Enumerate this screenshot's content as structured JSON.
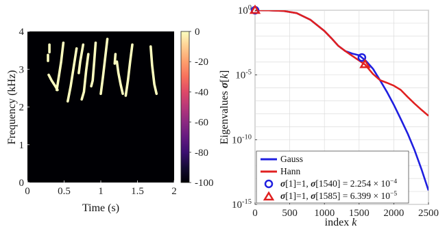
{
  "chart_data": [
    {
      "type": "heatmap",
      "xlabel": "Time (s)",
      "ylabel": "Frequency (kHz)",
      "xlim": [
        0,
        2
      ],
      "ylim": [
        0,
        4
      ],
      "x_ticks": [
        "0",
        "0.5",
        "1",
        "1.5",
        "2"
      ],
      "y_ticks": [
        "0",
        "1",
        "2",
        "3",
        "4"
      ],
      "colorbar": {
        "range": [
          -100,
          0
        ],
        "ticks": [
          "0",
          "-20",
          "-40",
          "-60",
          "-80",
          "-100"
        ],
        "colors": [
          "#000004",
          "#140b34",
          "#3b0f70",
          "#641a80",
          "#8c2981",
          "#b73779",
          "#de4968",
          "#f7705c",
          "#fe9f6d",
          "#fecf92",
          "#fcfdbf"
        ]
      },
      "background_color": "#000004",
      "strokes": [
        {
          "points": [
            [
              0.28,
              3.38
            ],
            [
              0.28,
              3.22
            ]
          ]
        },
        {
          "points": [
            [
              0.3,
              3.65
            ],
            [
              0.3,
              3.45
            ]
          ]
        },
        {
          "points": [
            [
              0.29,
              2.85
            ],
            [
              0.33,
              2.7
            ],
            [
              0.38,
              2.55
            ],
            [
              0.41,
              2.45
            ]
          ]
        },
        {
          "points": [
            [
              0.49,
              3.7
            ],
            [
              0.46,
              3.2
            ],
            [
              0.42,
              2.7
            ],
            [
              0.4,
              2.45
            ]
          ]
        },
        {
          "points": [
            [
              0.67,
              3.55
            ],
            [
              0.63,
              3.05
            ],
            [
              0.59,
              2.55
            ],
            [
              0.55,
              2.15
            ]
          ]
        },
        {
          "points": [
            [
              0.76,
              3.65
            ],
            [
              0.72,
              3.2
            ],
            [
              0.7,
              2.9
            ]
          ]
        },
        {
          "points": [
            [
              0.83,
              3.4
            ],
            [
              0.8,
              2.95
            ],
            [
              0.77,
              2.4
            ],
            [
              0.74,
              2.2
            ]
          ]
        },
        {
          "points": [
            [
              0.93,
              3.7
            ],
            [
              0.91,
              3.2
            ],
            [
              0.89,
              2.7
            ],
            [
              0.87,
              2.55
            ]
          ]
        },
        {
          "points": [
            [
              1.09,
              3.8
            ],
            [
              1.06,
              3.3
            ],
            [
              1.03,
              2.8
            ],
            [
              1.0,
              2.35
            ]
          ]
        },
        {
          "points": [
            [
              1.2,
              3.4
            ],
            [
              1.19,
              3.15
            ]
          ]
        },
        {
          "points": [
            [
              1.22,
              3.2
            ],
            [
              1.24,
              2.9
            ],
            [
              1.27,
              2.6
            ],
            [
              1.3,
              2.35
            ]
          ]
        },
        {
          "points": [
            [
              1.43,
              3.65
            ],
            [
              1.4,
              3.2
            ],
            [
              1.37,
              2.7
            ],
            [
              1.34,
              2.3
            ]
          ]
        },
        {
          "points": [
            [
              1.68,
              3.6
            ],
            [
              1.7,
              3.1
            ],
            [
              1.73,
              2.6
            ],
            [
              1.76,
              2.35
            ]
          ]
        }
      ]
    },
    {
      "type": "line",
      "xlabel": "index k",
      "ylabel": "Eigenvalues σ[k]",
      "xlim": [
        0,
        2500
      ],
      "yscale": "log",
      "ylim": [
        1e-15,
        1
      ],
      "x_ticks": [
        "0",
        "500",
        "1000",
        "1500",
        "2000",
        "2500"
      ],
      "y_ticks": [
        {
          "base": "10",
          "exp": "0",
          "value": 1
        },
        {
          "base": "10",
          "exp": "-5",
          "value": 1e-05
        },
        {
          "base": "10",
          "exp": "-10",
          "value": 1e-10
        },
        {
          "base": "10",
          "exp": "-15",
          "value": 1e-15
        }
      ],
      "grid": true,
      "legend_position": "bottom-left",
      "series": [
        {
          "name": "Gauss",
          "color": "#1f1fe0",
          "x": [
            0,
            200,
            400,
            600,
            800,
            1000,
            1100,
            1200,
            1300,
            1400,
            1500,
            1540,
            1600,
            1700,
            1800,
            1900,
            2000,
            2100,
            2200,
            2300,
            2400,
            2500
          ],
          "y": [
            1,
            0.98,
            0.9,
            0.6,
            0.18,
            0.025,
            0.007,
            0.0018,
            0.0007,
            0.00045,
            0.00033,
            0.000225,
            0.00012,
            3e-05,
            4e-06,
            5e-07,
            5e-08,
            4e-09,
            3e-10,
            1.5e-11,
            5e-13,
            1.2e-14
          ]
        },
        {
          "name": "Hann",
          "color": "#e02020",
          "x": [
            0,
            200,
            400,
            600,
            800,
            1000,
            1100,
            1200,
            1300,
            1400,
            1500,
            1585,
            1700,
            1800,
            1900,
            2000,
            2100,
            2200,
            2300,
            2400,
            2500
          ],
          "y": [
            1,
            0.98,
            0.9,
            0.6,
            0.18,
            0.025,
            0.007,
            0.0018,
            0.0007,
            0.0003,
            0.00013,
            6.4e-05,
            1.2e-05,
            4e-06,
            2.5e-06,
            1.5e-06,
            7e-07,
            2e-07,
            6e-08,
            2e-08,
            7e-09
          ]
        }
      ],
      "markers": [
        {
          "label_html": "𝝈[1]=1, 𝝈[1540] = 2.254 × 10⁻⁴",
          "shape": "circle",
          "color": "#1f1fe0",
          "points": [
            [
              0,
              1
            ],
            [
              1540,
              0.000225
            ]
          ]
        },
        {
          "label_html": "𝝈[1]=1, 𝝈[1585] = 6.399 × 10⁻⁵",
          "shape": "triangle",
          "color": "#e02020",
          "points": [
            [
              0,
              1
            ],
            [
              1585,
              6.4e-05
            ]
          ]
        }
      ],
      "legend_text": {
        "gauss": "Gauss",
        "hann": "Hann",
        "circle_a": "σ",
        "circle_b": "[1]=1, ",
        "circle_c": "σ",
        "circle_d": "[1540] = 2.254 × 10",
        "circle_e": "−4",
        "tri_a": "σ",
        "tri_b": "[1]=1, ",
        "tri_c": "σ",
        "tri_d": "[1585] = 6.399 × 10",
        "tri_e": "−5"
      }
    }
  ]
}
